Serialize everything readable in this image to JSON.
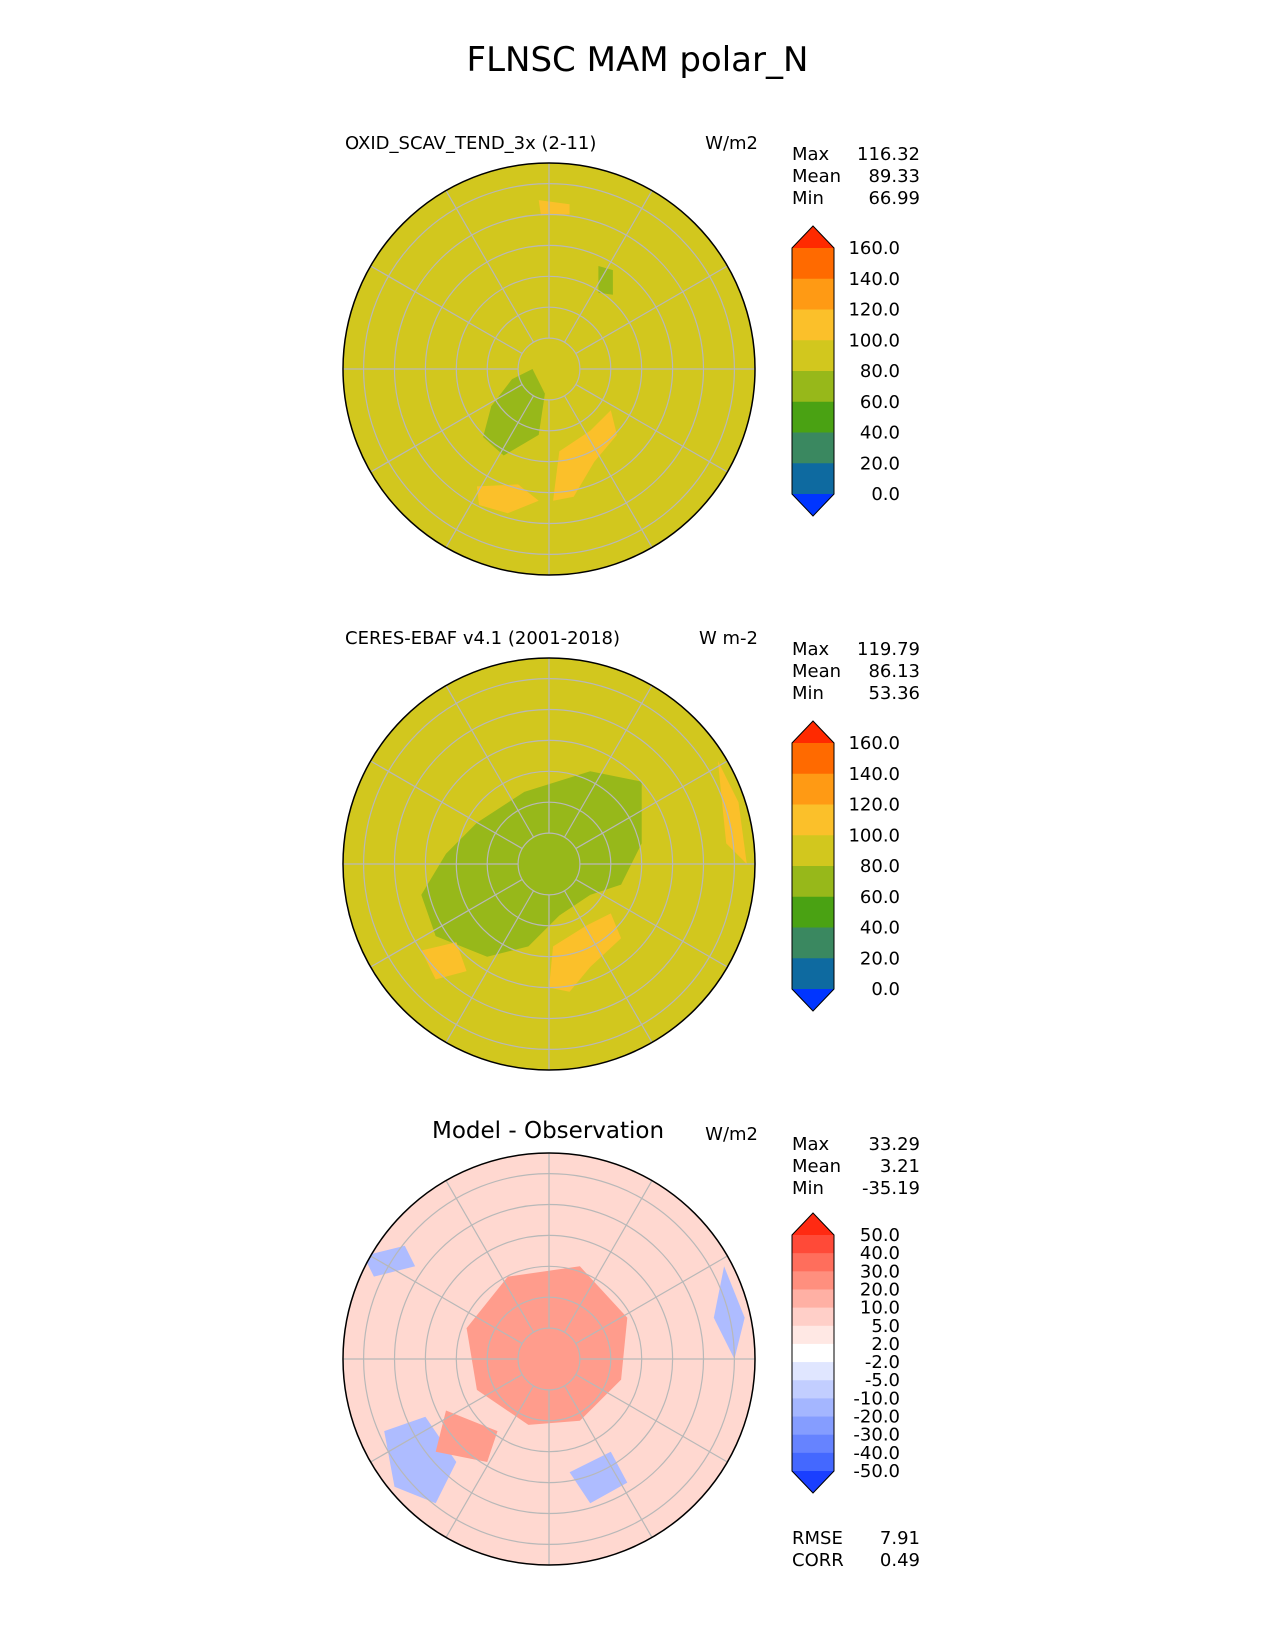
{
  "title": "FLNSC MAM polar_N",
  "panels": [
    {
      "title": "OXID_SCAV_TEND_3x (2-11)",
      "units": "W/m2",
      "stats": [
        {
          "label": "Max",
          "value": "116.32"
        },
        {
          "label": "Mean",
          "value": "89.33"
        },
        {
          "label": "Min",
          "value": "66.99"
        }
      ],
      "colorbar": {
        "labels": [
          "160.0",
          "140.0",
          "120.0",
          "100.0",
          "80.0",
          "60.0",
          "40.0",
          "20.0",
          "0.0"
        ],
        "colors": [
          "#ff2a00",
          "#ff6a00",
          "#ff9a14",
          "#fbc02a",
          "#d2c71e",
          "#97b81a",
          "#4aa213",
          "#3a8860",
          "#0e6aa0",
          "#0035ff"
        ]
      },
      "field": {
        "base": "#d2c71e",
        "low": "#97b81a",
        "high": "#fbc02a"
      }
    },
    {
      "title": "CERES-EBAF v4.1 (2001-2018)",
      "units": "W m-2",
      "stats": [
        {
          "label": "Max",
          "value": "119.79"
        },
        {
          "label": "Mean",
          "value": "86.13"
        },
        {
          "label": "Min",
          "value": "53.36"
        }
      ],
      "colorbar": {
        "labels": [
          "160.0",
          "140.0",
          "120.0",
          "100.0",
          "80.0",
          "60.0",
          "40.0",
          "20.0",
          "0.0"
        ],
        "colors": [
          "#ff2a00",
          "#ff6a00",
          "#ff9a14",
          "#fbc02a",
          "#d2c71e",
          "#97b81a",
          "#4aa213",
          "#3a8860",
          "#0e6aa0",
          "#0035ff"
        ]
      },
      "field": {
        "base": "#d2c71e",
        "low": "#97b81a",
        "high": "#fbc02a"
      }
    },
    {
      "title": "Model - Observation",
      "units": "W/m2",
      "stats": [
        {
          "label": "Max",
          "value": "33.29"
        },
        {
          "label": "Mean",
          "value": "3.21"
        },
        {
          "label": "Min",
          "value": "-35.19"
        }
      ],
      "colorbar": {
        "labels": [
          "50.0",
          "40.0",
          "30.0",
          "20.0",
          "10.0",
          "5.0",
          "2.0",
          "-2.0",
          "-5.0",
          "-10.0",
          "-20.0",
          "-30.0",
          "-40.0",
          "-50.0"
        ],
        "colors": [
          "#ff2a12",
          "#ff4a38",
          "#ff6e5c",
          "#ff8f7e",
          "#ffb0a4",
          "#ffcfc8",
          "#ffe8e4",
          "#ffffff",
          "#e0e6ff",
          "#c2ceff",
          "#a4b6ff",
          "#859dff",
          "#6683ff",
          "#4468ff",
          "#1a3fff"
        ]
      },
      "field": {
        "base": "#ffd8d0",
        "low": "#aebcff",
        "high": "#ff9c8c"
      },
      "metrics": [
        {
          "label": "RMSE",
          "value": "7.91"
        },
        {
          "label": "CORR",
          "value": "0.49"
        }
      ]
    }
  ],
  "chart_data": [
    {
      "type": "heatmap",
      "title": "OXID_SCAV_TEND_3x (2-11)",
      "units": "W/m2",
      "projection": "north polar stereographic",
      "stats": {
        "max": 116.32,
        "mean": 89.33,
        "min": 66.99
      },
      "colorbar_levels": [
        0,
        20,
        40,
        60,
        80,
        100,
        120,
        140,
        160
      ]
    },
    {
      "type": "heatmap",
      "title": "CERES-EBAF v4.1 (2001-2018)",
      "units": "W m-2",
      "projection": "north polar stereographic",
      "stats": {
        "max": 119.79,
        "mean": 86.13,
        "min": 53.36
      },
      "colorbar_levels": [
        0,
        20,
        40,
        60,
        80,
        100,
        120,
        140,
        160
      ]
    },
    {
      "type": "heatmap",
      "title": "Model - Observation",
      "units": "W/m2",
      "projection": "north polar stereographic",
      "stats": {
        "max": 33.29,
        "mean": 3.21,
        "min": -35.19,
        "rmse": 7.91,
        "corr": 0.49
      },
      "colorbar_levels": [
        -50,
        -40,
        -30,
        -20,
        -10,
        -5,
        -2,
        2,
        5,
        10,
        20,
        30,
        40,
        50
      ]
    }
  ]
}
